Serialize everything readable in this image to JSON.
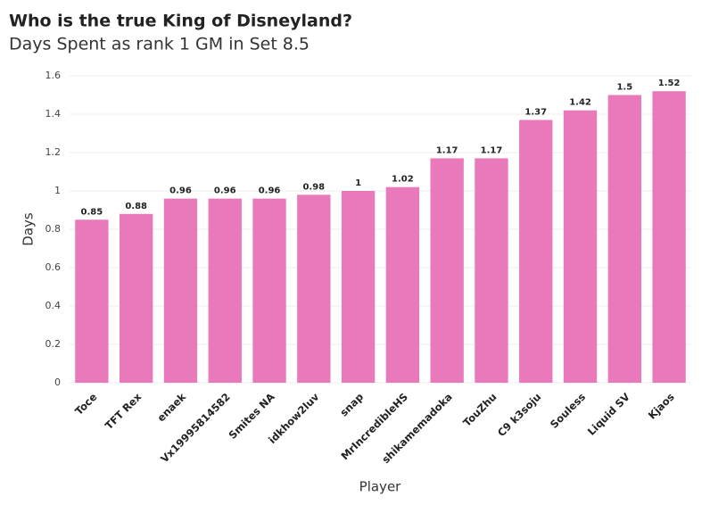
{
  "chart_data": {
    "type": "bar",
    "title": "Who is the true King of Disneyland?",
    "subtitle": "Days Spent as rank 1 GM in Set 8.5",
    "x_label": "Player",
    "y_label": "Days",
    "categories": [
      "Toce",
      "TFT Rex",
      "enaek",
      "Vx19995814582",
      "Smites NA",
      "idkhow2luv",
      "snap",
      "MrIncredibleHS",
      "shikamemadoka",
      "TouZhu",
      "C9 k3soju",
      "Souless",
      "Liquid SV",
      "Kjaos"
    ],
    "values": [
      0.85,
      0.88,
      0.96,
      0.96,
      0.96,
      0.98,
      1,
      1.02,
      1.17,
      1.17,
      1.37,
      1.42,
      1.5,
      1.52
    ],
    "color": "#e979bb",
    "ylim": [
      0,
      1.6
    ],
    "yticks": [
      0,
      0.2,
      0.4,
      0.6,
      0.8,
      1,
      1.2,
      1.4,
      1.6
    ],
    "grid": true
  }
}
